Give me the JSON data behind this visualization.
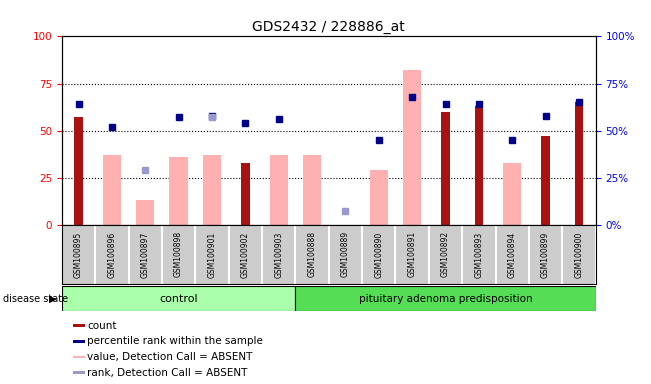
{
  "title": "GDS2432 / 228886_at",
  "samples": [
    "GSM100895",
    "GSM100896",
    "GSM100897",
    "GSM100898",
    "GSM100901",
    "GSM100902",
    "GSM100903",
    "GSM100888",
    "GSM100889",
    "GSM100890",
    "GSM100891",
    "GSM100892",
    "GSM100893",
    "GSM100894",
    "GSM100899",
    "GSM100900"
  ],
  "count": [
    57,
    0,
    0,
    0,
    0,
    33,
    0,
    0,
    0,
    0,
    0,
    60,
    63,
    0,
    47,
    65
  ],
  "percentile_rank": [
    64,
    52,
    null,
    57,
    58,
    54,
    56,
    null,
    null,
    45,
    68,
    64,
    64,
    45,
    58,
    65
  ],
  "value_absent": [
    null,
    37,
    13,
    36,
    37,
    null,
    37,
    37,
    null,
    29,
    82,
    null,
    null,
    33,
    null,
    null
  ],
  "rank_absent": [
    null,
    null,
    29,
    null,
    57,
    null,
    null,
    null,
    7,
    null,
    null,
    null,
    null,
    null,
    null,
    null
  ],
  "n_control": 7,
  "n_disease": 9,
  "control_label": "control",
  "disease_label": "pituitary adenoma predisposition",
  "ylim": [
    0,
    100
  ],
  "grid_lines": [
    25,
    50,
    75
  ],
  "bar_color_count": "#AA1111",
  "bar_color_value_absent": "#FFB0B0",
  "dot_color_percentile": "#00008B",
  "dot_color_rank_absent": "#9999CC",
  "background_color": "#FFFFFF",
  "tick_area_color": "#CCCCCC",
  "control_group_color": "#AAFFAA",
  "disease_group_color": "#55DD55",
  "legend": [
    {
      "label": "count",
      "color": "#AA1111"
    },
    {
      "label": "percentile rank within the sample",
      "color": "#00008B"
    },
    {
      "label": "value, Detection Call = ABSENT",
      "color": "#FFB0B0"
    },
    {
      "label": "rank, Detection Call = ABSENT",
      "color": "#9999CC"
    }
  ]
}
